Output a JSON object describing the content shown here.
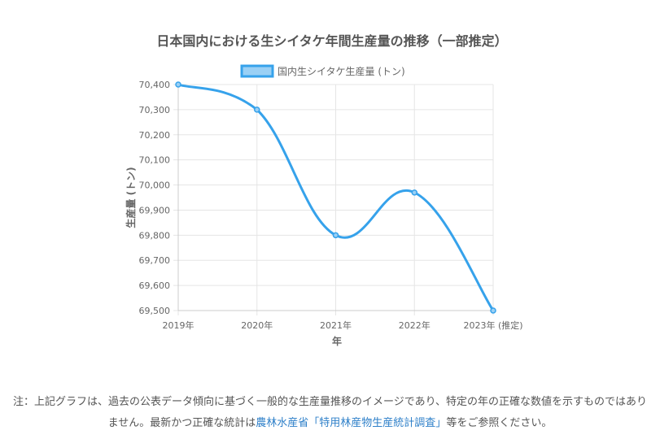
{
  "chart_data": {
    "type": "line",
    "title": "日本国内における生シイタケ年間生産量の推移（一部推定）",
    "categories": [
      "2019年",
      "2020年",
      "2021年",
      "2022年",
      "2023年 (推定)"
    ],
    "series": [
      {
        "name": "国内生シイタケ生産量 (トン)",
        "values": [
          70400,
          70300,
          69800,
          69970,
          69500
        ]
      }
    ],
    "xlabel": "年",
    "ylabel": "生産量 (トン)",
    "ylim": [
      69500,
      70400
    ],
    "yticks": [
      "70,400",
      "70,300",
      "70,200",
      "70,100",
      "70,000",
      "69,900",
      "69,800",
      "69,700",
      "69,600",
      "69,500"
    ],
    "grid": true,
    "legend": "top",
    "colors": {
      "line": "#36a2eb",
      "fill": "#9ad0f5",
      "grid": "#e5e5e5",
      "text": "#666666",
      "title": "#555555"
    }
  },
  "note": {
    "prefix": "注：上記グラフは、過去の公表データ傾向に基づく一般的な生産量推移のイメージであり、特定の年の正確な数値を示すものではありません。最新かつ正確な統計は",
    "link": "農林水産省「特用林産物生産統計調査」",
    "suffix": "等をご参照ください。",
    "link_color": "#2f80c9"
  }
}
